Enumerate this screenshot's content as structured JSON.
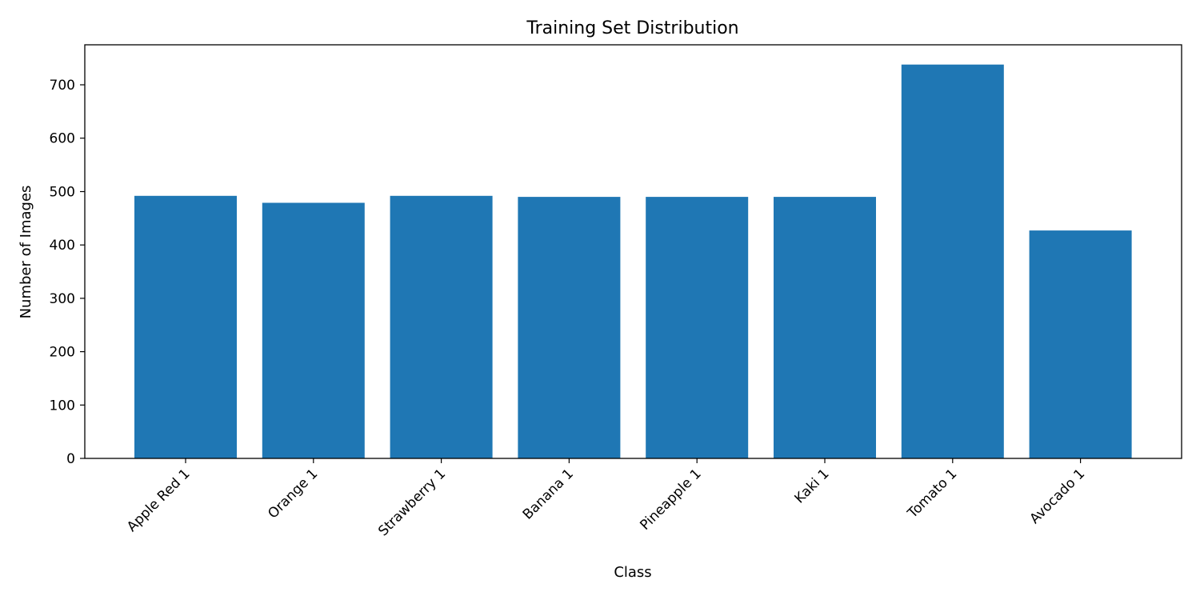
{
  "chart_data": {
    "type": "bar",
    "title": "Training Set Distribution",
    "xlabel": "Class",
    "ylabel": "Number of Images",
    "categories": [
      "Apple Red 1",
      "Orange 1",
      "Strawberry 1",
      "Banana 1",
      "Pineapple 1",
      "Kaki 1",
      "Tomato 1",
      "Avocado 1"
    ],
    "values": [
      492,
      479,
      492,
      490,
      490,
      490,
      738,
      427
    ],
    "ylim": [
      0,
      775
    ],
    "yticks": [
      0,
      100,
      200,
      300,
      400,
      500,
      600,
      700
    ],
    "grid": false,
    "bar_color": "#1f77b4"
  }
}
